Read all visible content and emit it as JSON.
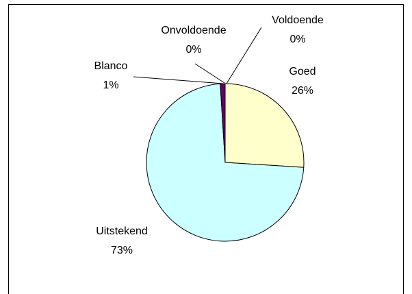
{
  "chart_data": {
    "type": "pie",
    "categories": [
      "Voldoende",
      "Goed",
      "Uitstekend",
      "Blanco",
      "Onvoldoende"
    ],
    "values": [
      0,
      26,
      73,
      1,
      0
    ],
    "value_labels": [
      "0%",
      "26%",
      "73%",
      "1%",
      "0%"
    ],
    "colors": [
      "#9999ff",
      "#ffffcc",
      "#ccffff",
      "#660066",
      "#993366"
    ]
  }
}
